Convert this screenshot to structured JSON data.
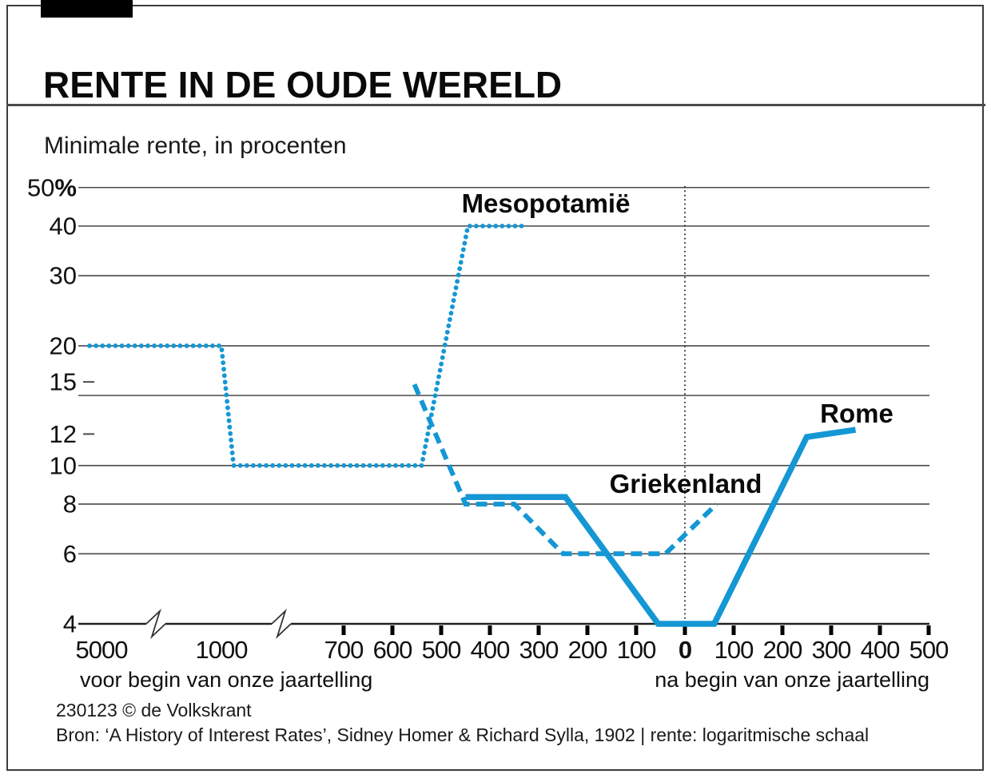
{
  "header": {
    "title": "RENTE IN DE OUDE WERELD"
  },
  "chart_data": {
    "type": "line",
    "title": "RENTE IN DE OUDE WERELD",
    "subtitle": "Minimale rente, in procenten",
    "xlabel": "",
    "ylabel": "Minimale rente, in procenten",
    "y_axis": {
      "scale": "logarithmic",
      "ylim": [
        4,
        50
      ],
      "unit_suffix": "%",
      "labels": [
        50,
        40,
        30,
        20,
        15,
        12,
        10,
        8,
        6,
        4
      ],
      "gridline_values": [
        50,
        40,
        30,
        20,
        15,
        10,
        8,
        6
      ],
      "short_tick_values": [
        15,
        12
      ],
      "baseline_value": 4
    },
    "x_axis": {
      "tick_years": [
        -700,
        -600,
        -500,
        -400,
        -300,
        -200,
        -100,
        0,
        100,
        200,
        300,
        400,
        500
      ],
      "outer_labels": [
        {
          "year": -5000,
          "label": "5000"
        },
        {
          "year": -1000,
          "label": "1000"
        }
      ],
      "zero_label": "0",
      "zero_bold": true,
      "axis_breaks": 2,
      "left_caption": "voor begin van onze jaartelling",
      "right_caption": "na begin van onze jaartelling",
      "zero_reference_line": "dotted"
    },
    "grid": true,
    "legend_position": "inline-labels",
    "series": [
      {
        "name": "Mesopotamië",
        "style": "dotted",
        "points": [
          [
            -5400,
            20
          ],
          [
            -1000,
            20
          ],
          [
            -970,
            10
          ],
          [
            -540,
            10
          ],
          [
            -445,
            40
          ],
          [
            -335,
            40
          ]
        ]
      },
      {
        "name": "Griekenland",
        "style": "dashed",
        "points": [
          [
            -555,
            16
          ],
          [
            -450,
            8
          ],
          [
            -350,
            8
          ],
          [
            -250,
            6
          ],
          [
            -40,
            6
          ],
          [
            65,
            8
          ]
        ]
      },
      {
        "name": "Rome",
        "style": "solid",
        "points": [
          [
            -450,
            8.33
          ],
          [
            -245,
            8.33
          ],
          [
            -55,
            4
          ],
          [
            60,
            4
          ],
          [
            250,
            11.8
          ],
          [
            350,
            12.3
          ]
        ]
      }
    ],
    "colors": {
      "line_blue": "#1497d4",
      "grid": "#4a4a4a",
      "axis": "#222222",
      "text": "#111111"
    }
  },
  "footer": {
    "credit": "230123 © de Volkskrant",
    "source": "Bron: ‘A History of Interest Rates’, Sidney Homer & Richard Sylla, 1902 | rente: logaritmische schaal"
  }
}
